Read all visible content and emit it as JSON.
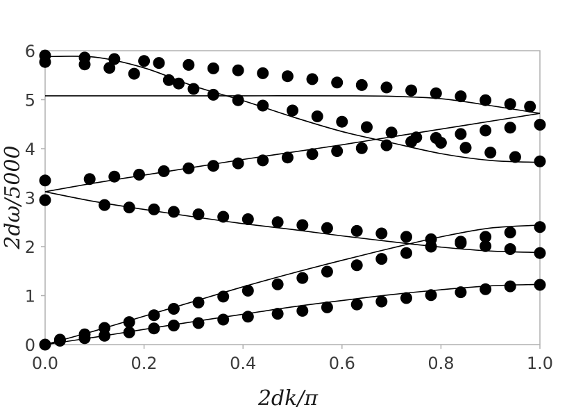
{
  "chart_data": {
    "type": "scatter",
    "title": "",
    "xlabel": "2dk/π",
    "ylabel": "2dω/5000",
    "xlim": [
      0.0,
      1.0
    ],
    "ylim": [
      0,
      6
    ],
    "xticks": [
      "0.0",
      "0.2",
      "0.4",
      "0.6",
      "0.8",
      "1.0"
    ],
    "yticks": [
      "0",
      "1",
      "2",
      "3",
      "4",
      "5",
      "6"
    ],
    "grid": false,
    "colors": {
      "marker": "#000000",
      "line": "#000000",
      "frame": "#b0b0b0",
      "text": "#3a3a3a"
    },
    "curves": [
      {
        "x": [
          0,
          0.1,
          0.2,
          0.3,
          0.4,
          0.5,
          0.6,
          0.7,
          0.8,
          0.9,
          1.0
        ],
        "y": [
          0,
          0.15,
          0.31,
          0.47,
          0.62,
          0.77,
          0.9,
          1.02,
          1.12,
          1.2,
          1.23
        ]
      },
      {
        "x": [
          0,
          0.1,
          0.2,
          0.3,
          0.4,
          0.5,
          0.6,
          0.7,
          0.8,
          0.9,
          1.0
        ],
        "y": [
          0,
          0.28,
          0.58,
          0.88,
          1.18,
          1.46,
          1.72,
          1.97,
          2.2,
          2.38,
          2.44
        ]
      },
      {
        "x": [
          0,
          0.1,
          0.2,
          0.3,
          0.4,
          0.5,
          0.6,
          0.7,
          0.8,
          0.9,
          1.0
        ],
        "y": [
          3.12,
          2.92,
          2.76,
          2.61,
          2.47,
          2.35,
          2.22,
          2.1,
          1.99,
          1.91,
          1.88
        ]
      },
      {
        "x": [
          0,
          0.1,
          0.2,
          0.3,
          0.4,
          0.5,
          0.6,
          0.7,
          0.8,
          0.9,
          1.0
        ],
        "y": [
          3.12,
          3.3,
          3.46,
          3.62,
          3.78,
          3.93,
          4.08,
          4.24,
          4.4,
          4.56,
          4.72
        ]
      },
      {
        "x": [
          0,
          0.1,
          0.2,
          0.3,
          0.4,
          0.5,
          0.6,
          0.7,
          0.8,
          0.9,
          1.0
        ],
        "y": [
          5.88,
          5.87,
          5.65,
          5.28,
          4.98,
          4.65,
          4.35,
          4.12,
          3.9,
          3.76,
          3.72
        ]
      },
      {
        "x": [
          0,
          0.2,
          0.4,
          0.6,
          0.7,
          0.8,
          0.9,
          1.0
        ],
        "y": [
          5.08,
          5.08,
          5.08,
          5.08,
          5.07,
          5.02,
          4.88,
          4.72
        ]
      }
    ],
    "points": [
      [
        0.0,
        0.0
      ],
      [
        0.03,
        0.08
      ],
      [
        0.08,
        0.13
      ],
      [
        0.12,
        0.18
      ],
      [
        0.17,
        0.25
      ],
      [
        0.22,
        0.33
      ],
      [
        0.26,
        0.39
      ],
      [
        0.31,
        0.44
      ],
      [
        0.36,
        0.51
      ],
      [
        0.41,
        0.57
      ],
      [
        0.47,
        0.63
      ],
      [
        0.52,
        0.69
      ],
      [
        0.57,
        0.76
      ],
      [
        0.63,
        0.82
      ],
      [
        0.68,
        0.88
      ],
      [
        0.73,
        0.95
      ],
      [
        0.78,
        1.01
      ],
      [
        0.84,
        1.07
      ],
      [
        0.89,
        1.13
      ],
      [
        0.94,
        1.19
      ],
      [
        1.0,
        1.22
      ],
      [
        0.03,
        0.1
      ],
      [
        0.08,
        0.21
      ],
      [
        0.12,
        0.34
      ],
      [
        0.17,
        0.46
      ],
      [
        0.22,
        0.6
      ],
      [
        0.26,
        0.73
      ],
      [
        0.31,
        0.86
      ],
      [
        0.36,
        0.98
      ],
      [
        0.41,
        1.1
      ],
      [
        0.47,
        1.23
      ],
      [
        0.52,
        1.36
      ],
      [
        0.57,
        1.49
      ],
      [
        0.63,
        1.62
      ],
      [
        0.68,
        1.75
      ],
      [
        0.73,
        1.87
      ],
      [
        0.78,
        2.0
      ],
      [
        0.84,
        2.1
      ],
      [
        0.89,
        2.2
      ],
      [
        0.94,
        2.29
      ],
      [
        1.0,
        2.4
      ],
      [
        0.0,
        2.95
      ],
      [
        0.12,
        2.85
      ],
      [
        0.17,
        2.8
      ],
      [
        0.22,
        2.76
      ],
      [
        0.26,
        2.71
      ],
      [
        0.31,
        2.66
      ],
      [
        0.36,
        2.61
      ],
      [
        0.41,
        2.56
      ],
      [
        0.47,
        2.5
      ],
      [
        0.52,
        2.44
      ],
      [
        0.57,
        2.38
      ],
      [
        0.63,
        2.32
      ],
      [
        0.68,
        2.27
      ],
      [
        0.73,
        2.2
      ],
      [
        0.78,
        2.15
      ],
      [
        0.84,
        2.07
      ],
      [
        0.89,
        2.01
      ],
      [
        0.94,
        1.95
      ],
      [
        1.0,
        1.87
      ],
      [
        0.0,
        3.35
      ],
      [
        0.09,
        3.38
      ],
      [
        0.14,
        3.43
      ],
      [
        0.19,
        3.47
      ],
      [
        0.24,
        3.54
      ],
      [
        0.29,
        3.6
      ],
      [
        0.34,
        3.65
      ],
      [
        0.39,
        3.7
      ],
      [
        0.44,
        3.76
      ],
      [
        0.49,
        3.82
      ],
      [
        0.54,
        3.89
      ],
      [
        0.59,
        3.95
      ],
      [
        0.64,
        4.01
      ],
      [
        0.69,
        4.07
      ],
      [
        0.74,
        4.14
      ],
      [
        0.79,
        4.22
      ],
      [
        0.84,
        4.3
      ],
      [
        0.89,
        4.37
      ],
      [
        0.94,
        4.43
      ],
      [
        1.0,
        4.49
      ],
      [
        0.0,
        5.9
      ],
      [
        0.0,
        5.77
      ],
      [
        0.08,
        5.86
      ],
      [
        0.08,
        5.72
      ],
      [
        0.13,
        5.65
      ],
      [
        0.14,
        5.83
      ],
      [
        0.18,
        5.53
      ],
      [
        0.2,
        5.79
      ],
      [
        0.25,
        5.4
      ],
      [
        0.27,
        5.33
      ],
      [
        0.3,
        5.22
      ],
      [
        0.34,
        5.1
      ],
      [
        0.39,
        4.99
      ],
      [
        0.44,
        4.88
      ],
      [
        0.5,
        4.78
      ],
      [
        0.55,
        4.66
      ],
      [
        0.6,
        4.55
      ],
      [
        0.65,
        4.44
      ],
      [
        0.7,
        4.33
      ],
      [
        0.75,
        4.23
      ],
      [
        0.8,
        4.12
      ],
      [
        0.85,
        4.02
      ],
      [
        0.9,
        3.92
      ],
      [
        0.95,
        3.83
      ],
      [
        1.0,
        3.74
      ],
      [
        0.23,
        5.75
      ],
      [
        0.29,
        5.71
      ],
      [
        0.34,
        5.64
      ],
      [
        0.39,
        5.6
      ],
      [
        0.44,
        5.54
      ],
      [
        0.49,
        5.48
      ],
      [
        0.54,
        5.42
      ],
      [
        0.59,
        5.35
      ],
      [
        0.64,
        5.3
      ],
      [
        0.69,
        5.25
      ],
      [
        0.74,
        5.19
      ],
      [
        0.79,
        5.13
      ],
      [
        0.84,
        5.07
      ],
      [
        0.89,
        4.99
      ],
      [
        0.94,
        4.91
      ],
      [
        0.98,
        4.86
      ]
    ]
  }
}
